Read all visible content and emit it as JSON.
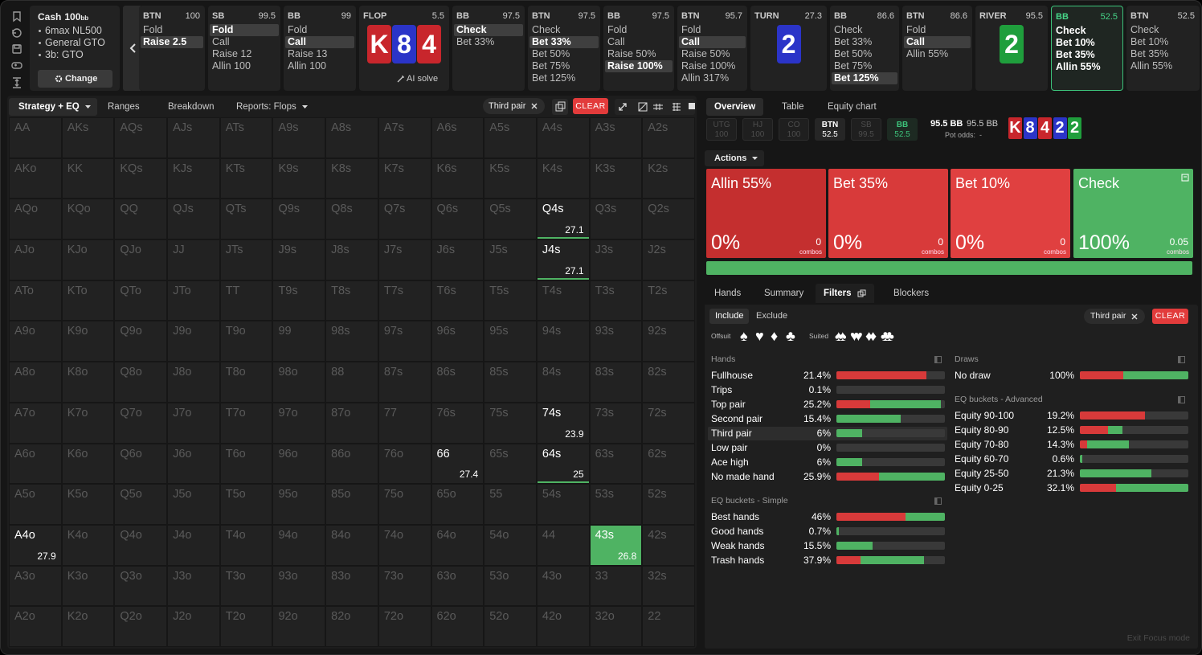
{
  "game": {
    "type": "Cash",
    "stack": "100",
    "unit": "bb",
    "details": [
      "6max NL500",
      "General GTO",
      "3b: GTO"
    ],
    "button": "Change"
  },
  "streets": [
    {
      "pos": "BTN",
      "stack": "100",
      "actions": [
        "Fold",
        "Raise 2.5"
      ],
      "selected": 1
    },
    {
      "pos": "SB",
      "stack": "99.5",
      "actions": [
        "Fold",
        "Call",
        "Raise 12",
        "Allin 100"
      ],
      "selected": 0
    },
    {
      "pos": "BB",
      "stack": "99",
      "actions": [
        "Fold",
        "Call",
        "Raise 13",
        "Allin 100"
      ],
      "selected": 1
    },
    {
      "pos": "FLOP",
      "stack": "5.5",
      "cards": [
        {
          "rank": "K",
          "color": "#c8262c"
        },
        {
          "rank": "8",
          "color": "#2b34c8"
        },
        {
          "rank": "4",
          "color": "#c8262c"
        }
      ],
      "button": "AI solve"
    },
    {
      "pos": "BB",
      "stack": "97.5",
      "actions": [
        "Check",
        "Bet 33%"
      ],
      "selected": 0
    },
    {
      "pos": "BTN",
      "stack": "97.5",
      "actions": [
        "Check",
        "Bet 33%",
        "Bet 50%",
        "Bet 75%",
        "Bet 125%"
      ],
      "selected": 1
    },
    {
      "pos": "BB",
      "stack": "97.5",
      "actions": [
        "Fold",
        "Call",
        "Raise 50%",
        "Raise 100%"
      ],
      "selected": 3
    },
    {
      "pos": "BTN",
      "stack": "95.7",
      "actions": [
        "Fold",
        "Call",
        "Raise 50%",
        "Raise 100%",
        "Allin 317%"
      ],
      "selected": 1
    },
    {
      "pos": "TURN",
      "stack": "27.3",
      "cards": [
        {
          "rank": "2",
          "color": "#2b34c8"
        }
      ]
    },
    {
      "pos": "BB",
      "stack": "86.6",
      "actions": [
        "Check",
        "Bet 33%",
        "Bet 50%",
        "Bet 75%",
        "Bet 125%"
      ],
      "selected": 4
    },
    {
      "pos": "BTN",
      "stack": "86.6",
      "actions": [
        "Fold",
        "Call",
        "Allin 55%"
      ],
      "selected": 1
    },
    {
      "pos": "RIVER",
      "stack": "95.5",
      "cards": [
        {
          "rank": "2",
          "color": "#1f9e3c"
        }
      ]
    },
    {
      "pos": "BB",
      "stack": "52.5",
      "actions": [
        "Check",
        "Bet 10%",
        "Bet 35%",
        "Allin 55%"
      ],
      "active": true
    },
    {
      "pos": "BTN",
      "stack": "52.5",
      "actions": [
        "Check",
        "Bet 10%",
        "Bet 35%",
        "Allin 55%"
      ]
    }
  ],
  "left": {
    "tabs": [
      "Strategy + EQ",
      "Ranges",
      "Breakdown",
      "Reports: Flops"
    ],
    "chip": "Third pair",
    "clear": "CLEAR",
    "grid": [
      [
        "AA",
        "AKs",
        "AQs",
        "AJs",
        "ATs",
        "A9s",
        "A8s",
        "A7s",
        "A6s",
        "A5s",
        "A4s",
        "A3s",
        "A2s"
      ],
      [
        "AKo",
        "KK",
        "KQs",
        "KJs",
        "KTs",
        "K9s",
        "K8s",
        "K7s",
        "K6s",
        "K5s",
        "K4s",
        "K3s",
        "K2s"
      ],
      [
        "AQo",
        "KQo",
        "QQ",
        "QJs",
        "QTs",
        "Q9s",
        "Q8s",
        "Q7s",
        "Q6s",
        "Q5s",
        "Q4s",
        "Q3s",
        "Q2s"
      ],
      [
        "AJo",
        "KJo",
        "QJo",
        "JJ",
        "JTs",
        "J9s",
        "J8s",
        "J7s",
        "J6s",
        "J5s",
        "J4s",
        "J3s",
        "J2s"
      ],
      [
        "ATo",
        "KTo",
        "QTo",
        "JTo",
        "TT",
        "T9s",
        "T8s",
        "T7s",
        "T6s",
        "T5s",
        "T4s",
        "T3s",
        "T2s"
      ],
      [
        "A9o",
        "K9o",
        "Q9o",
        "J9o",
        "T9o",
        "99",
        "98s",
        "97s",
        "96s",
        "95s",
        "94s",
        "93s",
        "92s"
      ],
      [
        "A8o",
        "K8o",
        "Q8o",
        "J8o",
        "T8o",
        "98o",
        "88",
        "87s",
        "86s",
        "85s",
        "84s",
        "83s",
        "82s"
      ],
      [
        "A7o",
        "K7o",
        "Q7o",
        "J7o",
        "T7o",
        "97o",
        "87o",
        "77",
        "76s",
        "75s",
        "74s",
        "73s",
        "72s"
      ],
      [
        "A6o",
        "K6o",
        "Q6o",
        "J6o",
        "T6o",
        "96o",
        "86o",
        "76o",
        "66",
        "65s",
        "64s",
        "63s",
        "62s"
      ],
      [
        "A5o",
        "K5o",
        "Q5o",
        "J5o",
        "T5o",
        "95o",
        "85o",
        "75o",
        "65o",
        "55",
        "54s",
        "53s",
        "52s"
      ],
      [
        "A4o",
        "K4o",
        "Q4o",
        "J4o",
        "T4o",
        "94o",
        "84o",
        "74o",
        "64o",
        "54o",
        "44",
        "43s",
        "42s"
      ],
      [
        "A3o",
        "K3o",
        "Q3o",
        "J3o",
        "T3o",
        "93o",
        "83o",
        "73o",
        "63o",
        "53o",
        "43o",
        "33",
        "32s"
      ],
      [
        "A2o",
        "K2o",
        "Q2o",
        "J2o",
        "T2o",
        "92o",
        "82o",
        "72o",
        "62o",
        "52o",
        "42o",
        "32o",
        "22"
      ]
    ],
    "highlights": [
      {
        "hand": "Q4s",
        "value": 27.1,
        "style": "underline"
      },
      {
        "hand": "J4s",
        "value": 27.1,
        "style": "underline"
      },
      {
        "hand": "74s",
        "value": 23.9,
        "style": "plain"
      },
      {
        "hand": "66",
        "value": 27.4,
        "style": "plain"
      },
      {
        "hand": "64s",
        "value": 25,
        "style": "underline"
      },
      {
        "hand": "A4o",
        "value": 27.9,
        "style": "plain"
      },
      {
        "hand": "43s",
        "value": 26.8,
        "style": "fill"
      }
    ]
  },
  "right": {
    "tabs": [
      "Overview",
      "Table",
      "Equity chart"
    ],
    "positions": [
      {
        "pos": "UTG",
        "stack": "100",
        "state": "folded"
      },
      {
        "pos": "HJ",
        "stack": "100",
        "state": "folded"
      },
      {
        "pos": "CO",
        "stack": "100",
        "state": "folded"
      },
      {
        "pos": "BTN",
        "stack": "52.5",
        "state": "live"
      },
      {
        "pos": "SB",
        "stack": "99.5",
        "state": "folded"
      },
      {
        "pos": "BB",
        "stack": "52.5",
        "state": "acting"
      }
    ],
    "pot": [
      "95.5 BB",
      "95.5 BB"
    ],
    "pot_odds_label": "Pot odds:",
    "pot_odds": "-",
    "board": [
      {
        "rank": "K",
        "color": "#c8262c"
      },
      {
        "rank": "8",
        "color": "#2b34c8"
      },
      {
        "rank": "4",
        "color": "#c8262c"
      },
      {
        "rank": "2",
        "color": "#2b34c8"
      },
      {
        "rank": "2",
        "color": "#1f9e3c"
      }
    ],
    "actions_menu": "Actions",
    "actions": [
      {
        "name": "Allin 55%",
        "freq": 0,
        "freq_label": "0%",
        "combos": "0",
        "combos_label": "combos",
        "color": "#c42f2f"
      },
      {
        "name": "Bet 35%",
        "freq": 0,
        "freq_label": "0%",
        "combos": "0",
        "combos_label": "combos",
        "color": "#d83a3a"
      },
      {
        "name": "Bet 10%",
        "freq": 0,
        "freq_label": "0%",
        "combos": "0",
        "combos_label": "combos",
        "color": "#e04040"
      },
      {
        "name": "Check",
        "freq": 100,
        "freq_label": "100%",
        "combos": "0.05",
        "combos_label": "combos",
        "color": "#4fb363"
      }
    ],
    "tabs2": [
      "Hands",
      "Summary",
      "Filters",
      "Blockers"
    ],
    "active_tab2": 2,
    "include": "Include",
    "exclude": "Exclude",
    "offsuit": "Offsuit",
    "suited": "Suited",
    "suits": [
      "♠",
      "♥",
      "♦",
      "♣"
    ],
    "chip": "Third pair",
    "clear": "CLEAR",
    "left_sections": [
      {
        "title": "Hands",
        "rows": [
          {
            "label": "Fullhouse",
            "value": "21.4%",
            "bar": [
              83,
              0
            ]
          },
          {
            "label": "Trips",
            "value": "0.1%",
            "bar": [
              0,
              0
            ]
          },
          {
            "label": "Top pair",
            "value": "25.2%",
            "bar": [
              31,
              65
            ]
          },
          {
            "label": "Second pair",
            "value": "15.4%",
            "bar": [
              0,
              59
            ]
          },
          {
            "label": "Third pair",
            "value": "6%",
            "bar": [
              0,
              24
            ],
            "selected": true
          },
          {
            "label": "Low pair",
            "value": "0%",
            "bar": [
              0,
              0
            ]
          },
          {
            "label": "Ace high",
            "value": "6%",
            "bar": [
              0,
              24
            ]
          },
          {
            "label": "No made hand",
            "value": "25.9%",
            "bar": [
              39,
              61
            ]
          }
        ]
      },
      {
        "title": "EQ buckets - Simple",
        "rows": [
          {
            "label": "Best hands",
            "value": "46%",
            "bar": [
              64,
              36
            ]
          },
          {
            "label": "Good hands",
            "value": "0.7%",
            "bar": [
              0,
              2
            ]
          },
          {
            "label": "Weak hands",
            "value": "15.5%",
            "bar": [
              0,
              33
            ]
          },
          {
            "label": "Trash hands",
            "value": "37.9%",
            "bar": [
              22,
              59
            ]
          }
        ]
      }
    ],
    "right_sections": [
      {
        "title": "Draws",
        "rows": [
          {
            "label": "No draw",
            "value": "100%",
            "bar": [
              40,
              60
            ]
          }
        ]
      },
      {
        "title": "EQ buckets - Advanced",
        "rows": [
          {
            "label": "Equity 90-100",
            "value": "19.2%",
            "bar": [
              60,
              0
            ]
          },
          {
            "label": "Equity 80-90",
            "value": "12.5%",
            "bar": [
              26,
              13
            ]
          },
          {
            "label": "Equity 70-80",
            "value": "14.3%",
            "bar": [
              7,
              38
            ]
          },
          {
            "label": "Equity 60-70",
            "value": "0.6%",
            "bar": [
              0,
              2
            ]
          },
          {
            "label": "Equity 25-50",
            "value": "21.3%",
            "bar": [
              0,
              66
            ]
          },
          {
            "label": "Equity 0-25",
            "value": "32.1%",
            "bar": [
              33,
              67
            ]
          }
        ]
      }
    ],
    "exit": "Exit Focus mode"
  }
}
